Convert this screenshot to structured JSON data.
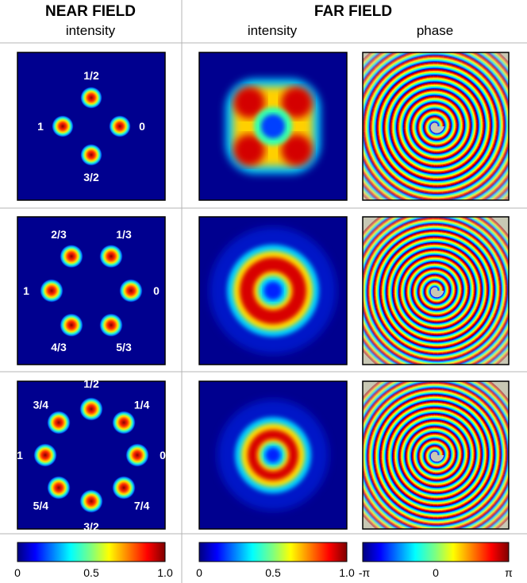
{
  "header": {
    "near_field": "NEAR FIELD",
    "far_field": "FAR FIELD",
    "near_intensity": "intensity",
    "far_intensity": "intensity",
    "far_phase": "phase"
  },
  "rows": [
    {
      "beams": 4,
      "labels": [
        "0",
        "1/2",
        "1",
        "3/2"
      ]
    },
    {
      "beams": 6,
      "labels": [
        "0",
        "1/3",
        "2/3",
        "1",
        "4/3",
        "5/3"
      ]
    },
    {
      "beams": 8,
      "labels": [
        "0",
        "1/4",
        "1/2",
        "3/4",
        "1",
        "5/4",
        "3/2",
        "7/4"
      ]
    }
  ],
  "colorbars": [
    {
      "name": "near-intensity",
      "ticks": [
        "0",
        "0.5",
        "1.0"
      ]
    },
    {
      "name": "far-intensity",
      "ticks": [
        "0",
        "0.5",
        "1.0"
      ]
    },
    {
      "name": "far-phase",
      "ticks": [
        "-π",
        "0",
        "π"
      ]
    }
  ],
  "colors": {
    "background_panel": "#00008f",
    "frame": "#000000",
    "divider": "#b4b4b4"
  }
}
